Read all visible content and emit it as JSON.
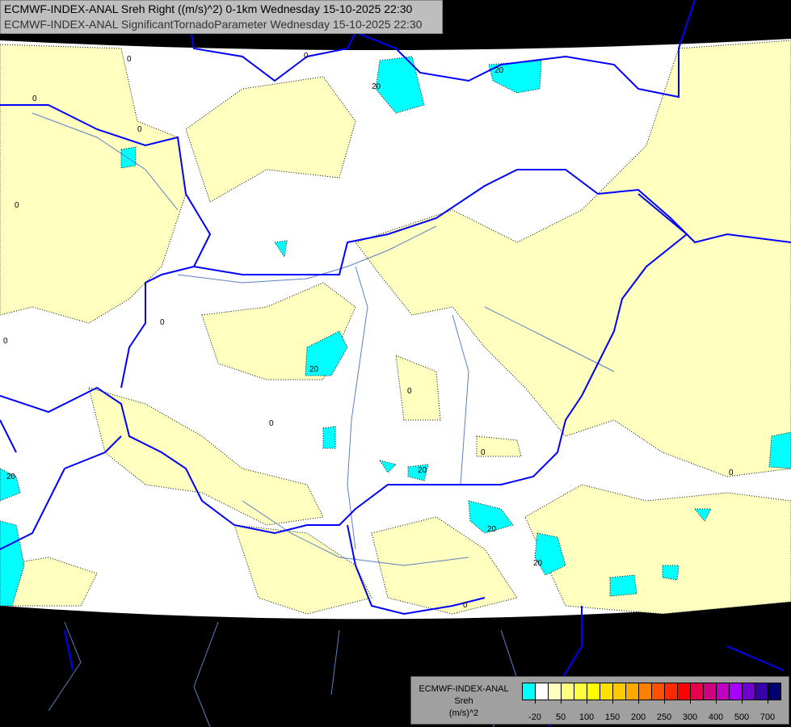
{
  "header": {
    "line1": "ECMWF-INDEX-ANAL Sreh Right ((m/s)^2) 0-1km Wednesday 15-10-2025 22:30",
    "line2": "ECMWF-INDEX-ANAL SignificantTornadoParameter Wednesday 15-10-2025 22:30"
  },
  "legend": {
    "model": "ECMWF-INDEX-ANAL",
    "variable": "Sreh",
    "unit": "(m/s)^2",
    "colors": [
      "#00ffff",
      "#ffffff",
      "#ffffc0",
      "#ffff80",
      "#ffff40",
      "#ffff00",
      "#ffe000",
      "#ffc800",
      "#ffa800",
      "#ff8000",
      "#ff5000",
      "#ff2800",
      "#ff0000",
      "#e8004a",
      "#d0007e",
      "#c000c0",
      "#a800ff",
      "#7000d0",
      "#3800a8",
      "#00006e"
    ],
    "tick_labels": [
      "-20",
      "50",
      "100",
      "150",
      "200",
      "250",
      "300",
      "400",
      "500",
      "700"
    ]
  },
  "map": {
    "contour_labels": [
      "0",
      "0",
      "0",
      "0",
      "0",
      "0",
      "0",
      "0",
      "0",
      "0",
      "0",
      "0",
      "20",
      "20",
      "20",
      "20",
      "20",
      "20",
      "20"
    ],
    "colors": {
      "background": "#000000",
      "domain": "#ffffff",
      "weak": "#ffffc0",
      "negative": "#00ffff",
      "borders": "#0000ff",
      "rivers": "#5a80c8"
    }
  }
}
